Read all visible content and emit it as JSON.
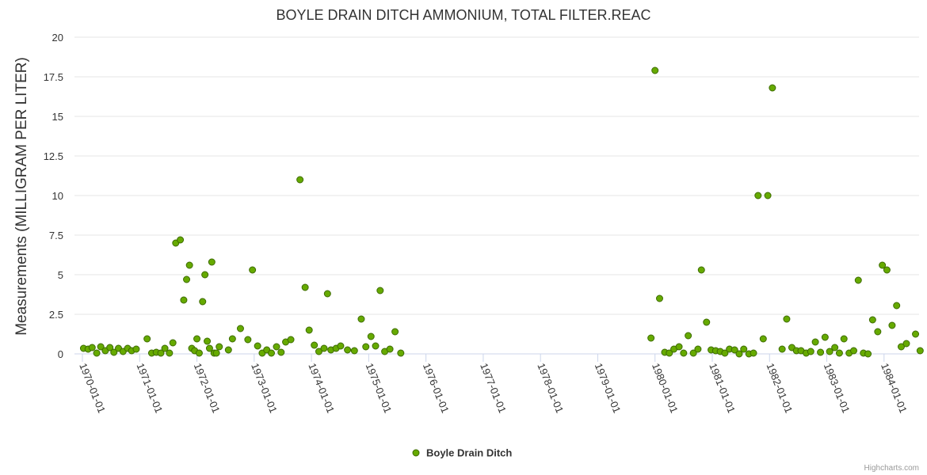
{
  "chart_data": {
    "type": "scatter",
    "title": "BOYLE DRAIN DITCH AMMONIUM, TOTAL FILTER.REAC",
    "xlabel": "",
    "ylabel": "Measurements (MILLIGRAM PER LITER)",
    "ylim": [
      0,
      20
    ],
    "y_ticks": [
      "0",
      "2.5",
      "5",
      "7.5",
      "10",
      "12.5",
      "15",
      "17.5",
      "20"
    ],
    "xlim": [
      1970.0,
      1984.75
    ],
    "x_ticks": [
      "1970-01-01",
      "1971-01-01",
      "1972-01-01",
      "1973-01-01",
      "1974-01-01",
      "1975-01-01",
      "1976-01-01",
      "1977-01-01",
      "1978-01-01",
      "1979-01-01",
      "1980-01-01",
      "1981-01-01",
      "1982-01-01",
      "1983-01-01",
      "1984-01-01"
    ],
    "legend": "bottom-center",
    "grid": true,
    "series": [
      {
        "name": "Boyle Drain Ditch",
        "color": "#66aa00",
        "points": [
          [
            1970.02,
            0.35
          ],
          [
            1970.1,
            0.3
          ],
          [
            1970.17,
            0.4
          ],
          [
            1970.25,
            0.05
          ],
          [
            1970.32,
            0.45
          ],
          [
            1970.4,
            0.2
          ],
          [
            1970.48,
            0.4
          ],
          [
            1970.55,
            0.1
          ],
          [
            1970.63,
            0.35
          ],
          [
            1970.71,
            0.15
          ],
          [
            1970.79,
            0.35
          ],
          [
            1970.86,
            0.2
          ],
          [
            1970.94,
            0.3
          ],
          [
            1971.13,
            0.95
          ],
          [
            1971.21,
            0.05
          ],
          [
            1971.29,
            0.1
          ],
          [
            1971.37,
            0.05
          ],
          [
            1971.44,
            0.35
          ],
          [
            1971.52,
            0.05
          ],
          [
            1971.58,
            0.7
          ],
          [
            1971.63,
            7.0
          ],
          [
            1971.71,
            7.2
          ],
          [
            1971.77,
            3.4
          ],
          [
            1971.82,
            4.7
          ],
          [
            1971.87,
            5.6
          ],
          [
            1971.91,
            0.35
          ],
          [
            1971.96,
            0.2
          ],
          [
            1972.0,
            0.95
          ],
          [
            1972.04,
            0.05
          ],
          [
            1972.1,
            3.3
          ],
          [
            1972.14,
            5.0
          ],
          [
            1972.18,
            0.8
          ],
          [
            1972.22,
            0.35
          ],
          [
            1972.26,
            5.8
          ],
          [
            1972.3,
            0.05
          ],
          [
            1972.34,
            0.05
          ],
          [
            1972.39,
            0.45
          ],
          [
            1972.55,
            0.25
          ],
          [
            1972.62,
            0.95
          ],
          [
            1972.76,
            1.6
          ],
          [
            1972.89,
            0.9
          ],
          [
            1972.97,
            5.3
          ],
          [
            1973.06,
            0.5
          ],
          [
            1973.14,
            0.05
          ],
          [
            1973.22,
            0.25
          ],
          [
            1973.3,
            0.05
          ],
          [
            1973.39,
            0.45
          ],
          [
            1973.47,
            0.1
          ],
          [
            1973.55,
            0.75
          ],
          [
            1973.64,
            0.9
          ],
          [
            1973.8,
            11.0
          ],
          [
            1973.89,
            4.2
          ],
          [
            1973.96,
            1.5
          ],
          [
            1974.05,
            0.55
          ],
          [
            1974.13,
            0.15
          ],
          [
            1974.22,
            0.35
          ],
          [
            1974.28,
            3.8
          ],
          [
            1974.34,
            0.25
          ],
          [
            1974.43,
            0.35
          ],
          [
            1974.51,
            0.5
          ],
          [
            1974.63,
            0.25
          ],
          [
            1974.75,
            0.2
          ],
          [
            1974.87,
            2.2
          ],
          [
            1974.95,
            0.45
          ],
          [
            1975.04,
            1.1
          ],
          [
            1975.12,
            0.5
          ],
          [
            1975.2,
            4.0
          ],
          [
            1975.28,
            0.15
          ],
          [
            1975.37,
            0.3
          ],
          [
            1975.46,
            1.4
          ],
          [
            1975.56,
            0.05
          ],
          [
            1979.93,
            1.0
          ],
          [
            1980.0,
            17.9
          ],
          [
            1980.08,
            3.5
          ],
          [
            1980.17,
            0.1
          ],
          [
            1980.25,
            0.05
          ],
          [
            1980.33,
            0.3
          ],
          [
            1980.42,
            0.45
          ],
          [
            1980.5,
            0.05
          ],
          [
            1980.58,
            1.15
          ],
          [
            1980.67,
            0.05
          ],
          [
            1980.75,
            0.3
          ],
          [
            1980.81,
            5.3
          ],
          [
            1980.9,
            2.0
          ],
          [
            1980.98,
            0.25
          ],
          [
            1981.06,
            0.2
          ],
          [
            1981.14,
            0.15
          ],
          [
            1981.22,
            0.05
          ],
          [
            1981.3,
            0.3
          ],
          [
            1981.39,
            0.25
          ],
          [
            1981.47,
            0.0
          ],
          [
            1981.55,
            0.3
          ],
          [
            1981.64,
            0.0
          ],
          [
            1981.72,
            0.05
          ],
          [
            1981.8,
            10.0
          ],
          [
            1981.89,
            0.95
          ],
          [
            1981.97,
            10.0
          ],
          [
            1982.05,
            16.8
          ],
          [
            1982.22,
            0.3
          ],
          [
            1982.3,
            2.2
          ],
          [
            1982.39,
            0.4
          ],
          [
            1982.47,
            0.2
          ],
          [
            1982.55,
            0.2
          ],
          [
            1982.64,
            0.05
          ],
          [
            1982.72,
            0.15
          ],
          [
            1982.8,
            0.75
          ],
          [
            1982.89,
            0.1
          ],
          [
            1982.97,
            1.05
          ],
          [
            1983.05,
            0.15
          ],
          [
            1983.14,
            0.4
          ],
          [
            1983.22,
            0.05
          ],
          [
            1983.3,
            0.95
          ],
          [
            1983.39,
            0.05
          ],
          [
            1983.47,
            0.2
          ],
          [
            1983.55,
            4.65
          ],
          [
            1983.64,
            0.05
          ],
          [
            1983.72,
            0.0
          ],
          [
            1983.8,
            2.15
          ],
          [
            1983.89,
            1.4
          ],
          [
            1983.97,
            5.6
          ],
          [
            1984.05,
            5.3
          ],
          [
            1984.14,
            1.8
          ],
          [
            1984.22,
            3.05
          ],
          [
            1984.3,
            0.45
          ],
          [
            1984.39,
            0.65
          ],
          [
            1984.55,
            1.25
          ],
          [
            1984.63,
            0.2
          ]
        ]
      }
    ]
  },
  "credits": "Highcharts.com"
}
